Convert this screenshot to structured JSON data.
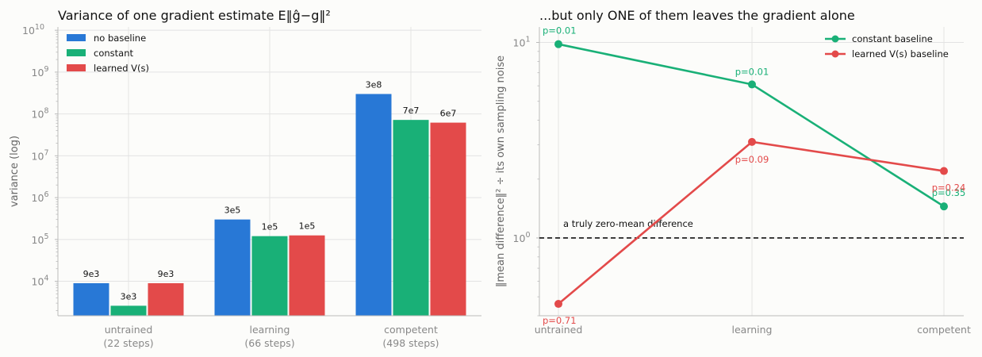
{
  "chart_data": [
    {
      "type": "bar",
      "title": "Variance of one gradient estimate  E‖ĝ−g‖²",
      "ylabel": "variance (log)",
      "yscale": "log",
      "ylim": [
        1500,
        12000000000
      ],
      "yticks": [
        10000,
        100000,
        1000000,
        10000000,
        100000000,
        1000000000,
        10000000000
      ],
      "ytick_exponents": [
        "4",
        "5",
        "6",
        "7",
        "8",
        "9",
        "10"
      ],
      "ytick_base": "10",
      "categories": [
        "untrained",
        "learning",
        "competent"
      ],
      "category_sublabels": [
        "(22 steps)",
        "(66 steps)",
        "(498 steps)"
      ],
      "series": [
        {
          "name": "no baseline",
          "color": "#2878d6",
          "values": [
            9000,
            300000,
            300000000
          ],
          "labels": [
            "9e3",
            "3e5",
            "3e8"
          ]
        },
        {
          "name": "constant",
          "color": "#19b077",
          "values": [
            2600,
            120000,
            72000000
          ],
          "labels": [
            "3e3",
            "1e5",
            "7e7"
          ]
        },
        {
          "name": "learned V(s)",
          "color": "#e34a4a",
          "values": [
            9000,
            125000,
            62000000
          ],
          "labels": [
            "9e3",
            "1e5",
            "6e7"
          ]
        }
      ],
      "grid": true,
      "legend": "top-left"
    },
    {
      "type": "line",
      "title": "...but only ONE of them leaves the gradient alone",
      "ylabel": "‖mean difference‖² ÷ its own sampling noise",
      "yscale": "log",
      "ylim": [
        0.4,
        12
      ],
      "yticks": [
        1,
        10
      ],
      "ytick_exponents": [
        "0",
        "1"
      ],
      "ytick_base": "10",
      "x": [
        "untrained",
        "learning",
        "competent"
      ],
      "series": [
        {
          "name": "constant baseline",
          "color": "#19b077",
          "values": [
            9.8,
            6.1,
            1.45
          ],
          "labels": [
            "p=0.01",
            "p=0.01",
            "p=0.35"
          ]
        },
        {
          "name": "learned V(s) baseline",
          "color": "#e34a4a",
          "values": [
            0.46,
            3.1,
            2.2
          ],
          "labels": [
            "p=0.71",
            "p=0.09",
            "p=0.24"
          ]
        }
      ],
      "reference_line": {
        "value": 1,
        "label": "a truly zero-mean difference"
      },
      "grid": true,
      "legend": "top-right"
    }
  ]
}
